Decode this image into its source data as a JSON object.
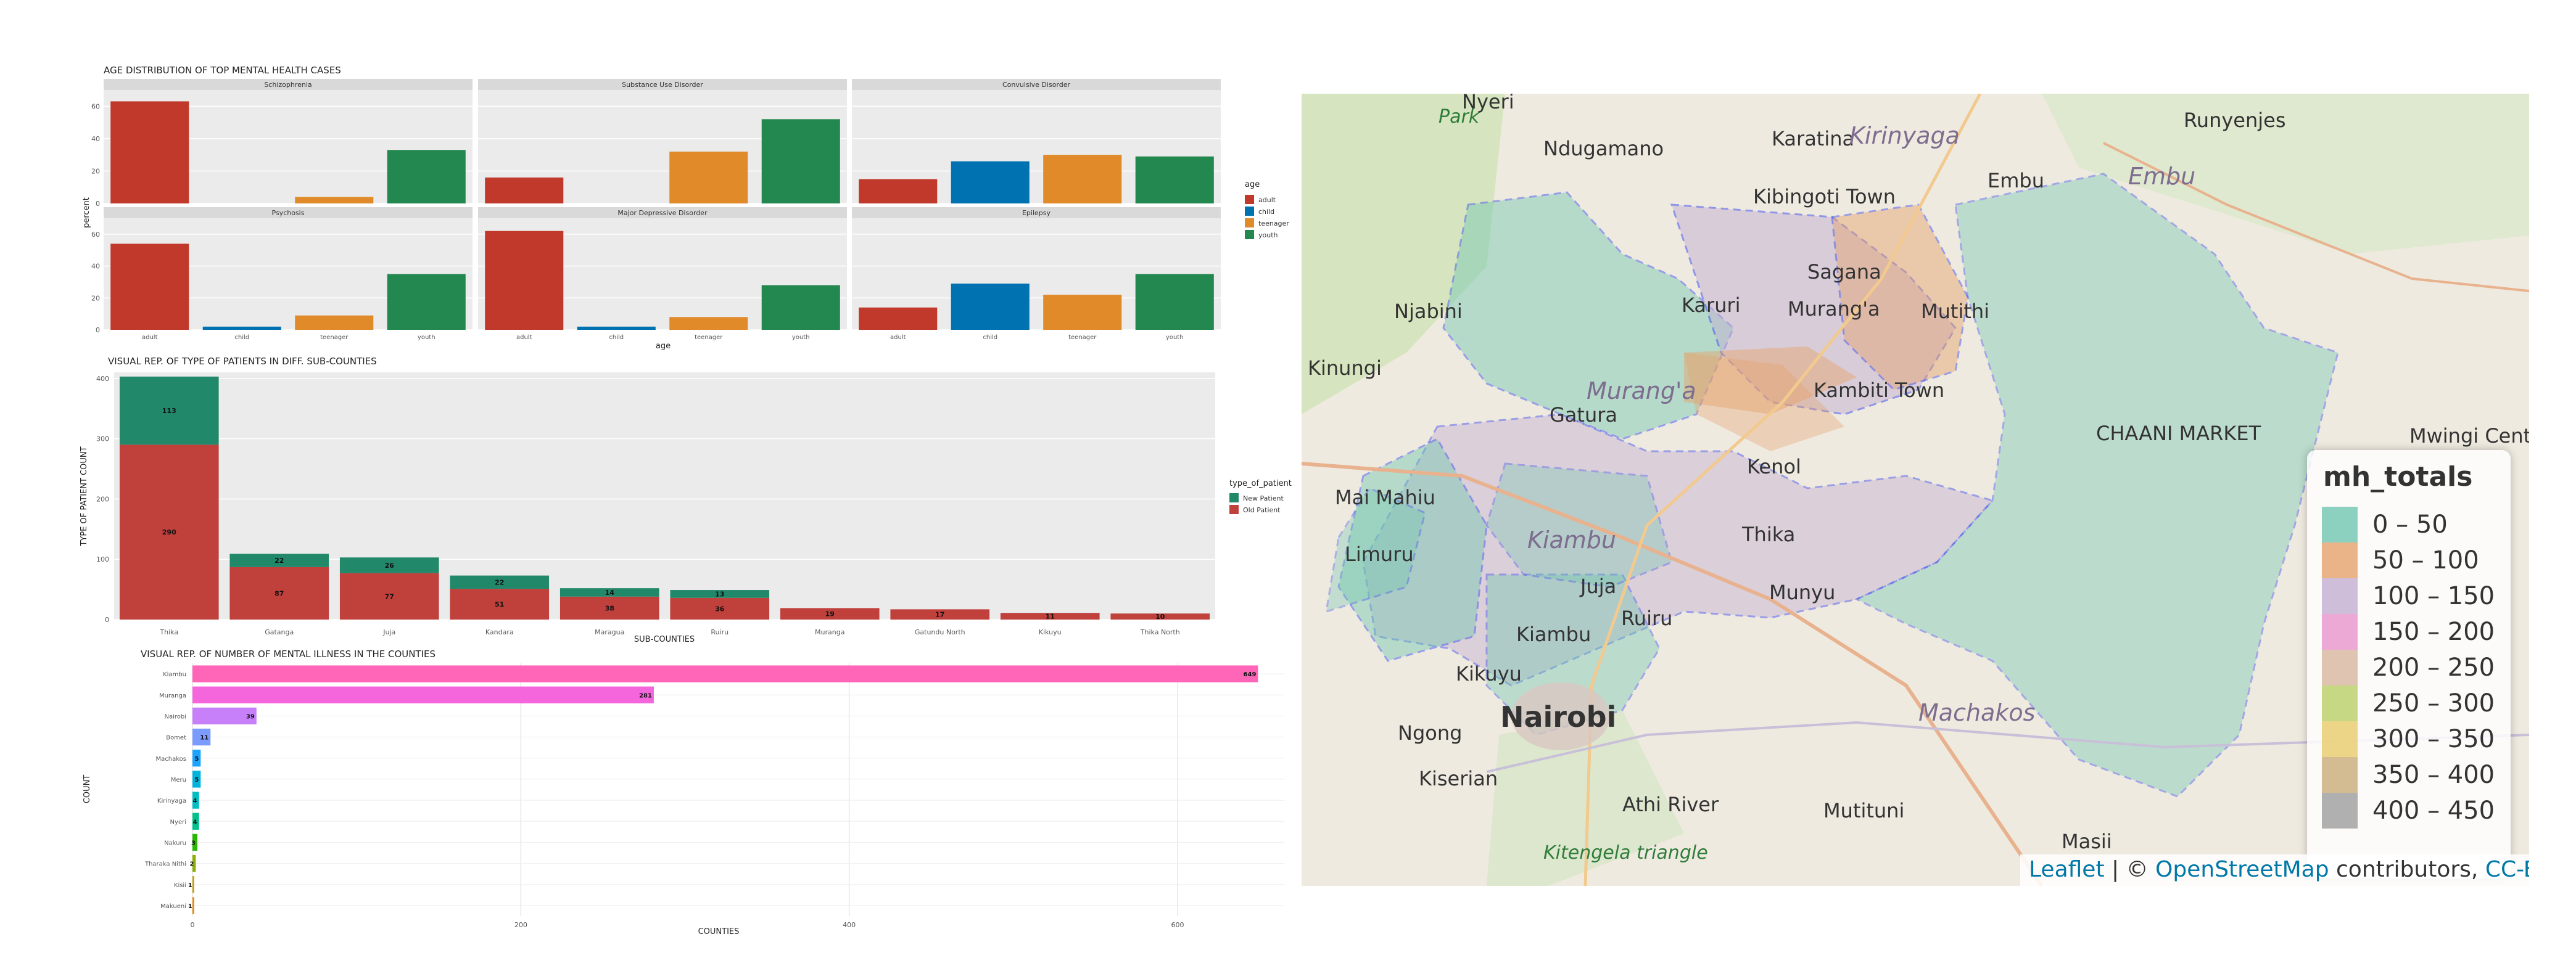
{
  "chart_data": [
    {
      "type": "bar",
      "title": "AGE DISTRIBUTION OF TOP MENTAL HEALTH CASES",
      "xlabel": "age",
      "ylabel": "percent",
      "ylim": [
        0,
        70
      ],
      "yticks": [
        0,
        20,
        40,
        60
      ],
      "categories": [
        "adult",
        "child",
        "teenager",
        "youth"
      ],
      "legend": {
        "title": "age",
        "entries": [
          "adult",
          "child",
          "teenager",
          "youth"
        ],
        "position": "right"
      },
      "colors": {
        "adult": "#c0392b",
        "child": "#0072b2",
        "teenager": "#e08a2a",
        "youth": "#22884f"
      },
      "panels": [
        {
          "name": "Schizophrenia",
          "values": [
            63,
            0,
            4,
            33
          ]
        },
        {
          "name": "Substance Use Disorder",
          "values": [
            16,
            0,
            32,
            52
          ]
        },
        {
          "name": "Convulsive Disorder",
          "values": [
            15,
            26,
            30,
            29
          ]
        },
        {
          "name": "Psychosis",
          "values": [
            54,
            2,
            9,
            35
          ]
        },
        {
          "name": "Major Depressive Disorder",
          "values": [
            62,
            2,
            8,
            28
          ]
        },
        {
          "name": "Epilepsy",
          "values": [
            14,
            29,
            22,
            35
          ]
        }
      ]
    },
    {
      "type": "bar",
      "stacked": true,
      "title": "VISUAL REP. OF TYPE OF PATIENTS IN DIFF. SUB-COUNTIES",
      "xlabel": "SUB-COUNTIES",
      "ylabel": "TYPE OF PATIENT COUNT",
      "ylim": [
        0,
        410
      ],
      "yticks": [
        0,
        100,
        200,
        300,
        400
      ],
      "categories": [
        "Thika",
        "Gatanga",
        "Juja",
        "Kandara",
        "Maragua",
        "Ruiru",
        "Muranga",
        "Gatundu North",
        "Kikuyu",
        "Thika North"
      ],
      "series": [
        {
          "name": "Old Patient",
          "color": "#c0403c",
          "values": [
            290,
            87,
            77,
            51,
            38,
            36,
            19,
            17,
            11,
            10
          ],
          "labels": [
            "290",
            "87",
            "77",
            "51",
            "38",
            "36",
            "19",
            "17",
            "11",
            "10"
          ]
        },
        {
          "name": "New Patient",
          "color": "#22886a",
          "values": [
            113,
            22,
            26,
            22,
            14,
            13,
            0,
            0,
            0,
            0
          ],
          "labels": [
            "113",
            "22",
            "26",
            "22",
            "14",
            "13",
            "",
            "",
            "",
            ""
          ]
        }
      ],
      "legend": {
        "title": "type_of_patient",
        "entries": [
          "New Patient",
          "Old Patient"
        ],
        "position": "right"
      }
    },
    {
      "type": "bar",
      "orientation": "horizontal",
      "title": "VISUAL REP. OF NUMBER OF MENTAL ILLNESS IN THE COUNTIES",
      "xlabel": "COUNTIES",
      "ylabel": "COUNT",
      "xlim": [
        0,
        665
      ],
      "xticks": [
        0,
        200,
        400,
        600
      ],
      "categories": [
        "Kiambu",
        "Muranga",
        "Nairobi",
        "Bomet",
        "Machakos",
        "Meru",
        "Kirinyaga",
        "Nyeri",
        "Nakuru",
        "Tharaka Nithi",
        "Kisii",
        "Makueni"
      ],
      "values": [
        649,
        281,
        39,
        11,
        5,
        5,
        4,
        4,
        3,
        2,
        1,
        1
      ],
      "labels": [
        "649",
        "281",
        "39",
        "11",
        "5",
        "5",
        "4",
        "4",
        "3",
        "2",
        "1",
        "1"
      ],
      "colors": [
        "#ff66b8",
        "#f565dc",
        "#c780fa",
        "#7b9bff",
        "#1aa3ff",
        "#00b3dd",
        "#00bec4",
        "#00c08b",
        "#29b800",
        "#8aaf00",
        "#c39b00",
        "#e58500"
      ]
    },
    {
      "type": "heatmap",
      "variant": "choropleth-map",
      "legend": {
        "title": "mh_totals",
        "position": "bottom-right",
        "bins": [
          {
            "label": "0 – 50",
            "color": "#6fc7b0"
          },
          {
            "label": "50 – 100",
            "color": "#e6a16b"
          },
          {
            "label": "100 – 150",
            "color": "#c3afd2"
          },
          {
            "label": "150 – 200",
            "color": "#e895cc"
          },
          {
            "label": "200 – 250",
            "color": "#d7b7a0"
          },
          {
            "label": "250 – 300",
            "color": "#b9cf66"
          },
          {
            "label": "300 – 350",
            "color": "#e8cc6a"
          },
          {
            "label": "350 – 400",
            "color": "#c9ad78"
          },
          {
            "label": "400 – 450",
            "color": "#9e9e9e"
          }
        ]
      }
    }
  ],
  "map": {
    "places": [
      {
        "name": "Nyeri",
        "cls": "place"
      },
      {
        "name": "Karatina",
        "cls": "place"
      },
      {
        "name": "Kirinyaga",
        "cls": "place place-region"
      },
      {
        "name": "Runyenjes",
        "cls": "place"
      },
      {
        "name": "Park",
        "cls": "place place-green"
      },
      {
        "name": "Ndugamano",
        "cls": "place"
      },
      {
        "name": "Kibingoti Town",
        "cls": "place"
      },
      {
        "name": "Embu",
        "cls": "place"
      },
      {
        "name": "Embu",
        "cls": "place place-region"
      },
      {
        "name": "Sagana",
        "cls": "place"
      },
      {
        "name": "Njabini",
        "cls": "place"
      },
      {
        "name": "Karuri",
        "cls": "place"
      },
      {
        "name": "Murang'a",
        "cls": "place"
      },
      {
        "name": "Mutithi",
        "cls": "place"
      },
      {
        "name": "Kinungi",
        "cls": "place"
      },
      {
        "name": "Murang'a",
        "cls": "place place-region"
      },
      {
        "name": "Kambiti Town",
        "cls": "place"
      },
      {
        "name": "Gatura",
        "cls": "place"
      },
      {
        "name": "CHAANI MARKET",
        "cls": "place"
      },
      {
        "name": "Mwingi Central",
        "cls": "place"
      },
      {
        "name": "Mai Mahiu",
        "cls": "place"
      },
      {
        "name": "Kenol",
        "cls": "place"
      },
      {
        "name": "Kiambu",
        "cls": "place place-region"
      },
      {
        "name": "Thika",
        "cls": "place"
      },
      {
        "name": "Limuru",
        "cls": "place"
      },
      {
        "name": "Juja",
        "cls": "place"
      },
      {
        "name": "Munyu",
        "cls": "place"
      },
      {
        "name": "Kiambu",
        "cls": "place"
      },
      {
        "name": "Ruiru",
        "cls": "place"
      },
      {
        "name": "Kikuyu",
        "cls": "place"
      },
      {
        "name": "Nairobi",
        "cls": "place place-big"
      },
      {
        "name": "Machakos",
        "cls": "place place-region"
      },
      {
        "name": "Ngong",
        "cls": "place"
      },
      {
        "name": "Kiserian",
        "cls": "place"
      },
      {
        "name": "Athi River",
        "cls": "place"
      },
      {
        "name": "Mutituni",
        "cls": "place"
      },
      {
        "name": "Masii",
        "cls": "place"
      },
      {
        "name": "Kitengela triangle",
        "cls": "place place-green"
      }
    ],
    "attribution": {
      "leaflet": "Leaflet",
      "sep": " | © ",
      "osm": "OpenStreetMap",
      "contrib": " contributors, ",
      "license": "CC-BY-SA"
    }
  }
}
